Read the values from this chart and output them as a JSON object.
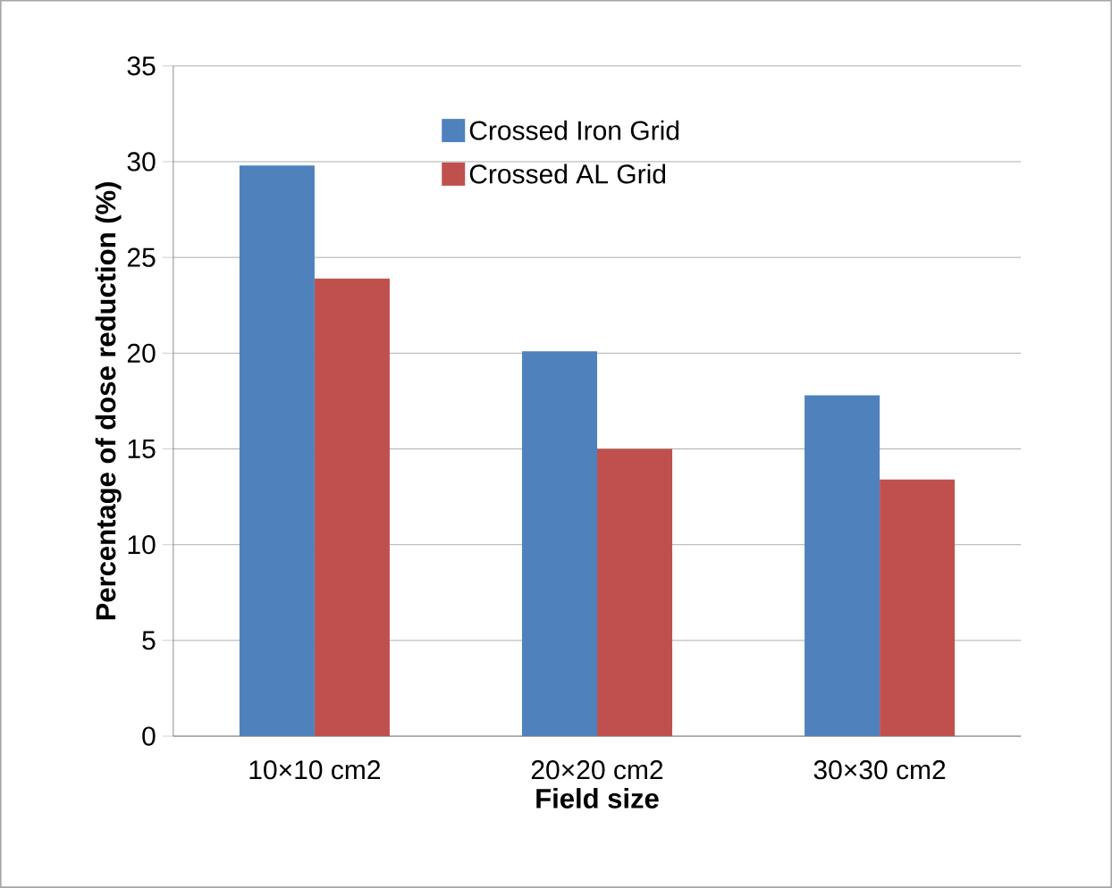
{
  "chart_data": {
    "type": "bar",
    "xlabel": "Field size",
    "ylabel": "Percentage of dose reduction  (%)",
    "categories": [
      "10×10 cm2",
      "20×20 cm2",
      "30×30 cm2"
    ],
    "series": [
      {
        "name": "Crossed Iron Grid",
        "color": "#4f81bd",
        "values": [
          29.8,
          20.1,
          17.8
        ]
      },
      {
        "name": "Crossed AL Grid",
        "color": "#c0504d",
        "values": [
          23.9,
          15.0,
          13.4
        ]
      }
    ],
    "ylim": [
      0,
      35
    ],
    "yticks": [
      0,
      5,
      10,
      15,
      20,
      25,
      30,
      35
    ],
    "grid": "y",
    "legend": "top right"
  }
}
